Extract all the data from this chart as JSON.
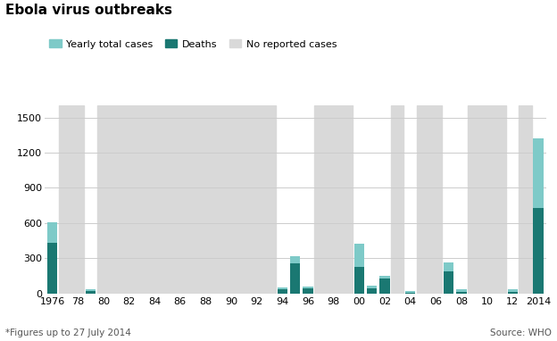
{
  "title": "Ebola virus outbreaks",
  "subtitle_note": "*Figures up to 27 July 2014",
  "source": "Source: WHO",
  "legend": [
    "Yearly total cases",
    "Deaths",
    "No reported cases"
  ],
  "color_cases": "#7ecac8",
  "color_deaths": "#1a7872",
  "color_no_cases": "#d9d9d9",
  "years": [
    1976,
    1977,
    1978,
    1979,
    1980,
    1981,
    1982,
    1983,
    1984,
    1985,
    1986,
    1987,
    1988,
    1989,
    1990,
    1991,
    1992,
    1993,
    1994,
    1995,
    1996,
    1997,
    1998,
    1999,
    2000,
    2001,
    2002,
    2003,
    2004,
    2005,
    2006,
    2007,
    2008,
    2009,
    2010,
    2011,
    2012,
    2013,
    2014
  ],
  "total_cases": [
    602,
    0,
    0,
    34,
    0,
    0,
    0,
    0,
    0,
    0,
    0,
    0,
    0,
    0,
    0,
    0,
    0,
    0,
    52,
    315,
    60,
    0,
    0,
    0,
    425,
    65,
    150,
    0,
    17,
    0,
    0,
    264,
    32,
    0,
    0,
    0,
    36,
    0,
    1323
  ],
  "deaths": [
    431,
    0,
    0,
    22,
    0,
    0,
    0,
    0,
    0,
    0,
    0,
    0,
    0,
    0,
    0,
    0,
    0,
    0,
    31,
    254,
    45,
    0,
    0,
    0,
    224,
    44,
    128,
    0,
    7,
    0,
    0,
    187,
    14,
    0,
    0,
    0,
    13,
    0,
    729
  ],
  "no_cases_ranges": [
    [
      1977,
      1978
    ],
    [
      1980,
      1993
    ],
    [
      1997,
      1999
    ],
    [
      2003,
      2003
    ],
    [
      2005,
      2006
    ],
    [
      2009,
      2011
    ],
    [
      2013,
      2013
    ]
  ],
  "xtick_labels": [
    "1976",
    "78",
    "80",
    "82",
    "84",
    "86",
    "88",
    "90",
    "92",
    "94",
    "96",
    "98",
    "00",
    "02",
    "04",
    "06",
    "08",
    "10",
    "12",
    "2014"
  ],
  "xtick_positions": [
    1976,
    1978,
    1980,
    1982,
    1984,
    1986,
    1988,
    1990,
    1992,
    1994,
    1996,
    1998,
    2000,
    2002,
    2004,
    2006,
    2008,
    2010,
    2012,
    2014
  ],
  "ylim": [
    0,
    1600
  ],
  "yticks": [
    0,
    300,
    600,
    900,
    1200,
    1500
  ],
  "bar_width": 0.8
}
